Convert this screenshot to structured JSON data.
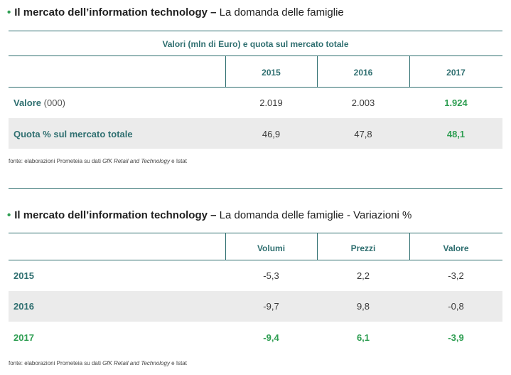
{
  "section1": {
    "bullet": "•",
    "title_bold": "Il mercato dell’information technology –",
    "title_rest": "La domanda delle famiglie",
    "header": "Valori (mln di Euro) e quota sul mercato totale",
    "columns": [
      "2015",
      "2016",
      "2017"
    ],
    "rows": [
      {
        "label": "Valore",
        "label_suffix": "(000)",
        "values": [
          "2.019",
          "2.003",
          "1.924"
        ]
      },
      {
        "label": "Quota % sul mercato totale",
        "label_suffix": "",
        "values": [
          "46,9",
          "47,8",
          "48,1"
        ]
      }
    ],
    "source_prefix": "fonte: elaborazioni Prometeia su dati ",
    "source_italic": "GfK Retail and Technology",
    "source_suffix": " e Istat"
  },
  "section2": {
    "bullet": "•",
    "title_bold": "Il mercato dell’information technology –",
    "title_rest": "La domanda delle famiglie - Variazioni %",
    "columns": [
      "Volumi",
      "Prezzi",
      "Valore"
    ],
    "rows": [
      {
        "label": "2015",
        "values": [
          "-5,3",
          "2,2",
          "-3,2"
        ]
      },
      {
        "label": "2016",
        "values": [
          "-9,7",
          "9,8",
          "-0,8"
        ]
      },
      {
        "label": "2017",
        "values": [
          "-9,4",
          "6,1",
          "-3,9"
        ]
      }
    ],
    "source_prefix": "fonte: elaborazioni Prometeia su dati ",
    "source_italic": "GfK Retail and Technology",
    "source_suffix": " e Istat"
  },
  "colors": {
    "accent_teal": "#2f6f70",
    "highlight_green": "#2e9e52",
    "row_shade": "#ebebeb"
  }
}
